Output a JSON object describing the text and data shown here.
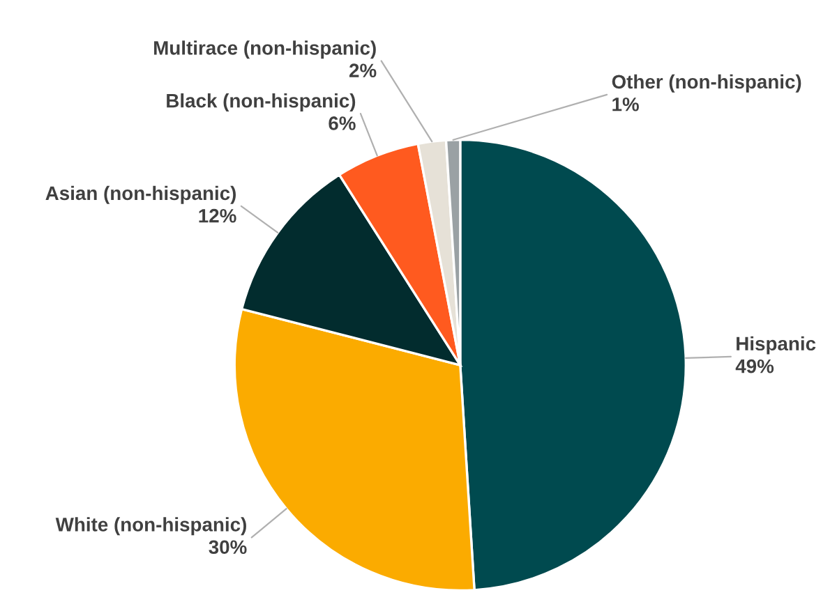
{
  "chart_data": {
    "type": "pie",
    "value_labels": [
      "49%",
      "30%",
      "12%",
      "6%",
      "2%",
      "1%"
    ],
    "categories": [
      "Hispanic",
      "White (non-hispanic)",
      "Asian (non-hispanic)",
      "Black (non-hispanic)",
      "Multirace (non-hispanic)",
      "Other (non-hispanic)"
    ],
    "values": [
      49,
      30,
      12,
      6,
      2,
      1
    ],
    "colors": [
      "#004a4f",
      "#fbab00",
      "#022c2e",
      "#ff5a1f",
      "#e6e1d7",
      "#9aa1a4"
    ]
  }
}
